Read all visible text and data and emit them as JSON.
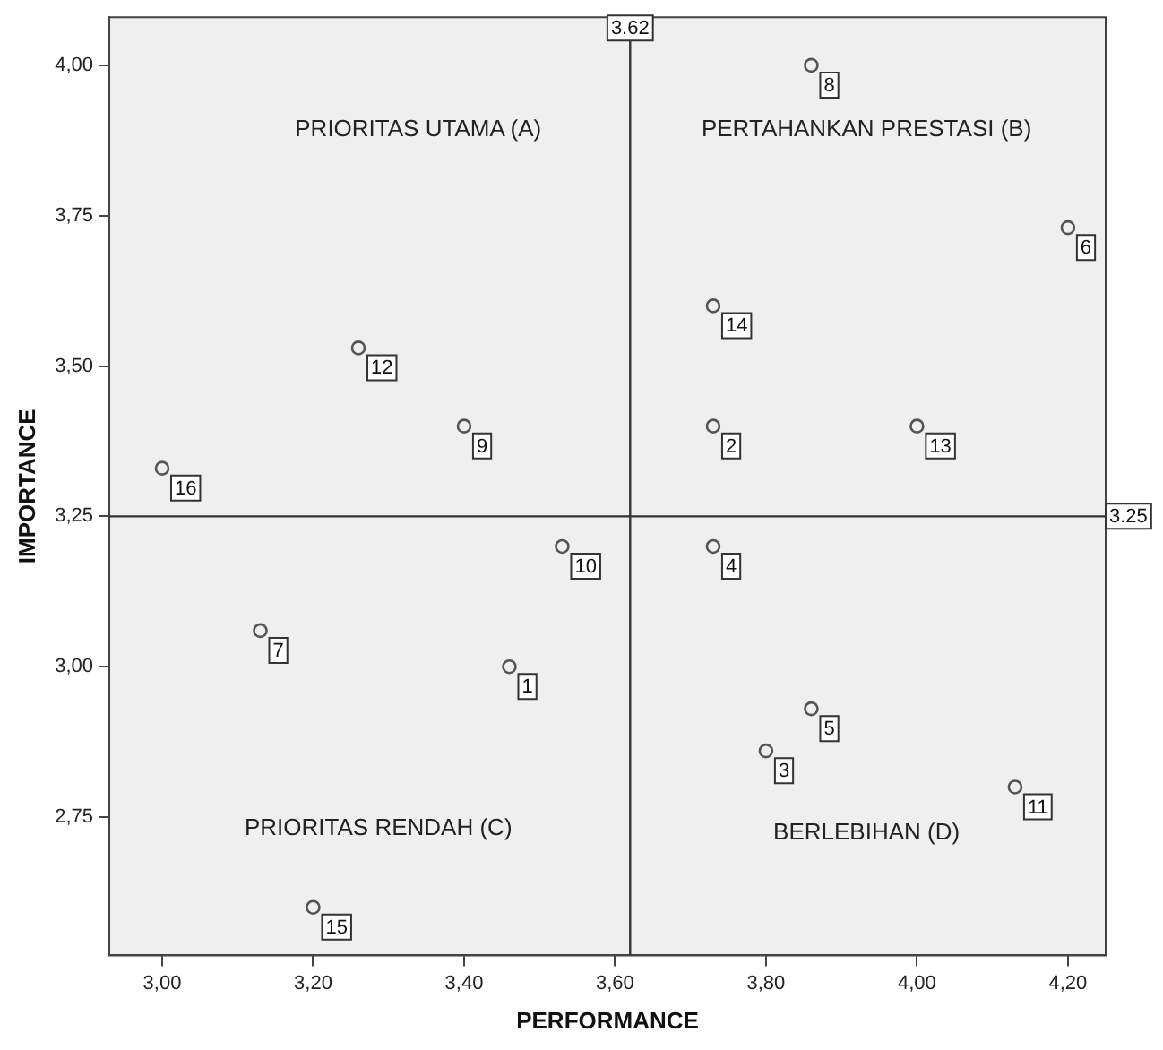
{
  "chart_data": {
    "type": "scatter",
    "xlabel": "PERFORMANCE",
    "ylabel": "IMPORTANCE",
    "xlim": [
      2.93,
      4.25
    ],
    "ylim": [
      2.52,
      4.08
    ],
    "xticks": [
      {
        "value": 3,
        "label": "3,00"
      },
      {
        "value": 3.2,
        "label": "3,20"
      },
      {
        "value": 3.4,
        "label": "3,40"
      },
      {
        "value": 3.6,
        "label": "3,60"
      },
      {
        "value": 3.8,
        "label": "3,80"
      },
      {
        "value": 4,
        "label": "4,00"
      },
      {
        "value": 4.2,
        "label": "4,20"
      }
    ],
    "yticks": [
      {
        "value": 2.75,
        "label": "2,75"
      },
      {
        "value": 3,
        "label": "3,00"
      },
      {
        "value": 3.25,
        "label": "3,25"
      },
      {
        "value": 3.5,
        "label": "3,50"
      },
      {
        "value": 3.75,
        "label": "3,75"
      },
      {
        "value": 4,
        "label": "4,00"
      }
    ],
    "grid": false,
    "legend": false,
    "marker": "circle",
    "series": [
      {
        "color": "#555555",
        "x": [
          3.46,
          3.73,
          3.8,
          3.73,
          3.86,
          4.2,
          3.13,
          3.86,
          3.4,
          3.53,
          4.13,
          3.26,
          4.0,
          3.73,
          3.2,
          3.0
        ],
        "values": [
          3.0,
          3.4,
          2.86,
          3.2,
          2.93,
          3.73,
          3.06,
          4.0,
          3.4,
          3.2,
          2.8,
          3.53,
          3.4,
          3.6,
          2.6,
          3.33
        ]
      }
    ],
    "ref_lines": [
      {
        "axis": "x",
        "value": 3.62,
        "label": "3.62",
        "color": "#333333"
      },
      {
        "axis": "y",
        "value": 3.25,
        "label": "3.25",
        "color": "#333333"
      }
    ],
    "annotations": [
      "PRIORITAS UTAMA (A)",
      "PERTAHANKAN PRESTASI (B)",
      "PRIORITAS RENDAH (C)",
      "BERLEBIHAN (D)",
      {
        "text": "1",
        "x": 3.46,
        "y": 3.0
      },
      {
        "text": "2",
        "x": 3.73,
        "y": 3.4
      },
      {
        "text": "3",
        "x": 3.8,
        "y": 2.86
      },
      {
        "text": "4",
        "x": 3.73,
        "y": 3.2
      },
      {
        "text": "5",
        "x": 3.86,
        "y": 2.93
      },
      {
        "text": "6",
        "x": 4.2,
        "y": 3.73
      },
      {
        "text": "7",
        "x": 3.13,
        "y": 3.06
      },
      {
        "text": "8",
        "x": 3.86,
        "y": 4.0
      },
      {
        "text": "9",
        "x": 3.4,
        "y": 3.4
      },
      {
        "text": "10",
        "x": 3.53,
        "y": 3.2
      },
      {
        "text": "11",
        "x": 4.13,
        "y": 2.8
      },
      {
        "text": "12",
        "x": 3.26,
        "y": 3.53
      },
      {
        "text": "13",
        "x": 4.0,
        "y": 3.4
      },
      {
        "text": "14",
        "x": 3.73,
        "y": 3.6
      },
      {
        "text": "15",
        "x": 3.2,
        "y": 2.6
      },
      {
        "text": "16",
        "x": 3.0,
        "y": 3.33
      }
    ]
  }
}
